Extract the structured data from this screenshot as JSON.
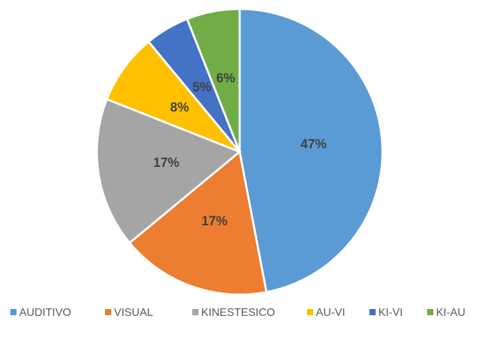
{
  "chart_data": {
    "type": "pie",
    "categories": [
      "AUDITIVO",
      "VISUAL",
      "KINESTESICO",
      "AU-VI",
      "KI-VI",
      "KI-AU"
    ],
    "values": [
      47,
      17,
      17,
      8,
      5,
      6
    ],
    "value_labels": [
      "47%",
      "17%",
      "17%",
      "8%",
      "5%",
      "6%"
    ],
    "colors": [
      "#5b9bd5",
      "#ed7d31",
      "#a5a5a5",
      "#ffc000",
      "#4472c4",
      "#70ad47"
    ],
    "legend": "bottom"
  }
}
